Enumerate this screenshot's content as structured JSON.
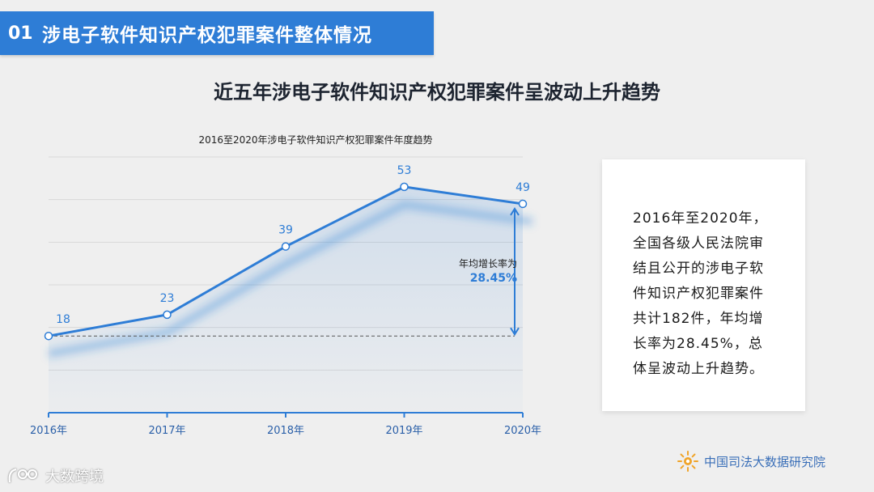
{
  "header": {
    "number": "01",
    "title": "涉电子软件知识产权犯罪案件整体情况"
  },
  "headline": "近五年涉电子软件知识产权犯罪案件呈波动上升趋势",
  "chart_data": {
    "type": "line",
    "title": "2016至2020年涉电子软件知识产权犯罪案件年度趋势",
    "categories": [
      "2016年",
      "2017年",
      "2018年",
      "2019年",
      "2020年"
    ],
    "series": [
      {
        "values": [
          18,
          23,
          39,
          53,
          49
        ]
      }
    ],
    "ylim": [
      0,
      60
    ],
    "grid": true,
    "baseline_value": 18,
    "annotation": {
      "label": "年均增长率为",
      "value": "28.45%"
    },
    "colors": {
      "line": "#2e7dd6",
      "fill": "#2e7dd6",
      "text": "#2e7dd6",
      "axis": "#2e7dd6"
    }
  },
  "note": {
    "text": "2016年至2020年，全国各级人民法院审结且公开的涉电子软件知识产权犯罪案件共计182件，年均增长率为28.45%，总体呈波动上升趋势。"
  },
  "footer": {
    "org_name": "中国司法大数据研究院",
    "org_logo_icon": "sun-emblem-icon",
    "watermark_text": "大数跨境",
    "watermark_icon": "watermark-logo-icon"
  }
}
